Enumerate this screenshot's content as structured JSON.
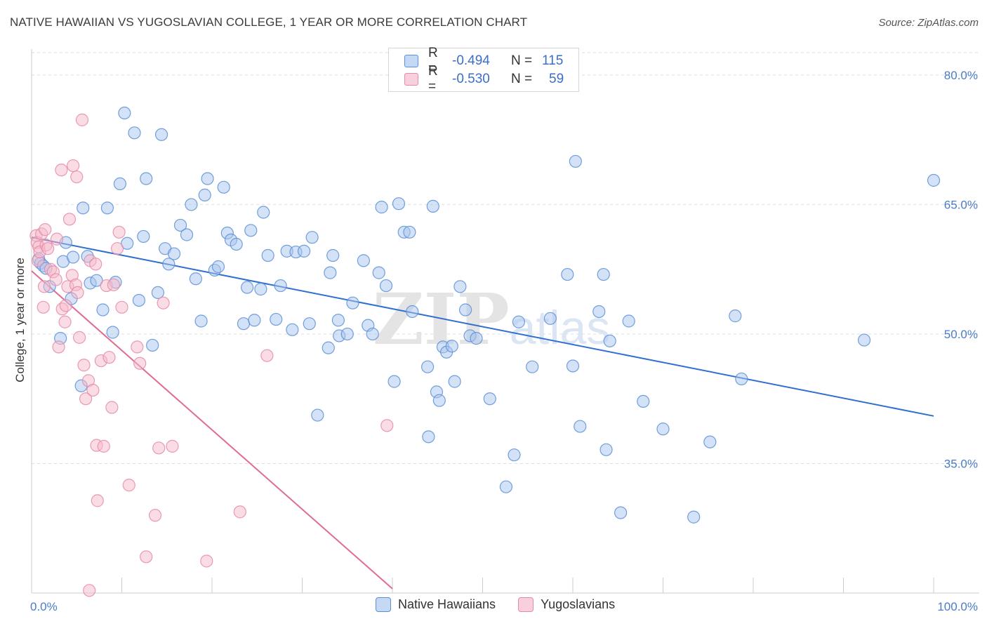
{
  "title": "NATIVE HAWAIIAN VS YUGOSLAVIAN COLLEGE, 1 YEAR OR MORE CORRELATION CHART",
  "source": "Source: ZipAtlas.com",
  "watermark": "ZIPatlas",
  "colors": {
    "blue_fill": "#a9c6ef",
    "blue_stroke": "#5b8fd6",
    "blue_line": "#2f6fcf",
    "pink_fill": "#f5b9cc",
    "pink_stroke": "#e58aa8",
    "pink_line": "#e06b96",
    "tick_text": "#4a7cc9",
    "grid": "#dedede"
  },
  "legend": {
    "rows": [
      {
        "r_label": "R =",
        "r_value": "-0.494",
        "n_label": "N =",
        "n_value": "115"
      },
      {
        "r_label": "R =",
        "r_value": "-0.530",
        "n_label": "N =",
        "n_value": "59"
      }
    ]
  },
  "bottom_legend": [
    "Native Hawaiians",
    "Yugoslavians"
  ],
  "chart_data": {
    "type": "scatter",
    "ylabel": "College, 1 year or more",
    "xlim": [
      0,
      100
    ],
    "ylim": [
      20,
      83
    ],
    "x_ticks": [
      "0.0%",
      "100.0%"
    ],
    "y_ticks": [
      {
        "value": 80,
        "label": "80.0%"
      },
      {
        "value": 65,
        "label": "65.0%"
      },
      {
        "value": 50,
        "label": "50.0%"
      },
      {
        "value": 35,
        "label": "35.0%"
      }
    ],
    "grid": true,
    "series": [
      {
        "name": "Native Hawaiians",
        "trend": {
          "x": [
            0,
            100
          ],
          "y": [
            61.2,
            40.5
          ]
        },
        "points": [
          [
            0.8,
            58.7
          ],
          [
            1,
            58.2
          ],
          [
            1.3,
            57.9
          ],
          [
            1.6,
            57.6
          ],
          [
            2,
            55.5
          ],
          [
            3.2,
            49.5
          ],
          [
            3.5,
            58.4
          ],
          [
            3.8,
            60.6
          ],
          [
            4.4,
            54.1
          ],
          [
            4.6,
            58.9
          ],
          [
            5.5,
            44
          ],
          [
            5.7,
            64.6
          ],
          [
            6.2,
            59
          ],
          [
            6.5,
            55.9
          ],
          [
            7.2,
            56.2
          ],
          [
            7.9,
            52.8
          ],
          [
            8.4,
            64.6
          ],
          [
            9,
            50.2
          ],
          [
            9.3,
            56
          ],
          [
            9.8,
            67.4
          ],
          [
            10.3,
            75.6
          ],
          [
            10.6,
            60.5
          ],
          [
            11.4,
            73.3
          ],
          [
            11.9,
            53.9
          ],
          [
            12.4,
            61.3
          ],
          [
            12.7,
            68
          ],
          [
            13.4,
            48.7
          ],
          [
            14,
            54.8
          ],
          [
            14.4,
            73.1
          ],
          [
            14.8,
            59.9
          ],
          [
            15.2,
            58.1
          ],
          [
            15.8,
            59.3
          ],
          [
            16.5,
            62.6
          ],
          [
            17.2,
            61.5
          ],
          [
            17.7,
            65
          ],
          [
            18.2,
            56.4
          ],
          [
            18.8,
            51.5
          ],
          [
            19.2,
            66.1
          ],
          [
            19.5,
            68
          ],
          [
            20.3,
            57.4
          ],
          [
            20.7,
            57.8
          ],
          [
            21.3,
            67
          ],
          [
            21.7,
            61.7
          ],
          [
            22.1,
            60.9
          ],
          [
            22.7,
            60.4
          ],
          [
            23.5,
            51.2
          ],
          [
            23.9,
            55.4
          ],
          [
            24.3,
            62
          ],
          [
            24.7,
            51.6
          ],
          [
            25.4,
            55.2
          ],
          [
            25.7,
            64.1
          ],
          [
            26.2,
            59.1
          ],
          [
            27.1,
            51.7
          ],
          [
            27.6,
            55.6
          ],
          [
            28.3,
            59.6
          ],
          [
            28.9,
            50.5
          ],
          [
            29.3,
            59.5
          ],
          [
            30.2,
            59.6
          ],
          [
            30.8,
            51.2
          ],
          [
            31.1,
            61.2
          ],
          [
            31.7,
            40.6
          ],
          [
            32.9,
            48.4
          ],
          [
            33.1,
            57.1
          ],
          [
            33.4,
            59.1
          ],
          [
            34,
            51.6
          ],
          [
            34.1,
            49.8
          ],
          [
            35,
            50
          ],
          [
            35.6,
            53.6
          ],
          [
            36.8,
            58.5
          ],
          [
            37.3,
            51
          ],
          [
            37.8,
            50
          ],
          [
            38.5,
            57.1
          ],
          [
            38.8,
            64.7
          ],
          [
            39.3,
            55.6
          ],
          [
            40.2,
            44.5
          ],
          [
            40.7,
            65.1
          ],
          [
            41.3,
            61.8
          ],
          [
            41.9,
            61.8
          ],
          [
            42.2,
            52.6
          ],
          [
            43.9,
            46.2
          ],
          [
            44,
            38.1
          ],
          [
            44.5,
            64.8
          ],
          [
            44.9,
            43.3
          ],
          [
            45.2,
            42.3
          ],
          [
            45.6,
            48.5
          ],
          [
            46,
            47.9
          ],
          [
            46.6,
            48.6
          ],
          [
            46.9,
            44.5
          ],
          [
            47.5,
            55.5
          ],
          [
            48.1,
            52.8
          ],
          [
            48.6,
            49.8
          ],
          [
            49.3,
            49.5
          ],
          [
            50.8,
            42.5
          ],
          [
            52.6,
            32.3
          ],
          [
            53.5,
            36
          ],
          [
            54,
            51.4
          ],
          [
            55.5,
            46.2
          ],
          [
            57.5,
            51.8
          ],
          [
            59.4,
            56.9
          ],
          [
            60,
            46.3
          ],
          [
            60.3,
            70
          ],
          [
            60.8,
            39.3
          ],
          [
            62.9,
            52.6
          ],
          [
            63.4,
            56.9
          ],
          [
            63.7,
            36.6
          ],
          [
            64.1,
            49.2
          ],
          [
            65.3,
            29.3
          ],
          [
            66.2,
            51.5
          ],
          [
            67.8,
            42.2
          ],
          [
            70,
            39
          ],
          [
            73.4,
            28.8
          ],
          [
            75.2,
            37.5
          ],
          [
            78,
            52.1
          ],
          [
            78.7,
            44.8
          ],
          [
            92.3,
            49.3
          ],
          [
            100,
            67.8
          ]
        ]
      },
      {
        "name": "Yugoslavians",
        "trend": {
          "x": [
            0,
            40
          ],
          "y": [
            57.3,
            20.5
          ]
        },
        "points": [
          [
            0.5,
            61.4
          ],
          [
            0.6,
            60.6
          ],
          [
            0.7,
            58.5
          ],
          [
            0.8,
            60.1
          ],
          [
            0.9,
            59.5
          ],
          [
            1.1,
            61.6
          ],
          [
            1.3,
            53.1
          ],
          [
            1.4,
            55.5
          ],
          [
            1.5,
            62.1
          ],
          [
            1.6,
            60.3
          ],
          [
            1.8,
            59.9
          ],
          [
            2.1,
            57.5
          ],
          [
            2.4,
            57.2
          ],
          [
            2.7,
            56.3
          ],
          [
            2.8,
            61
          ],
          [
            3,
            48.5
          ],
          [
            3.3,
            69
          ],
          [
            3.4,
            52.9
          ],
          [
            3.7,
            51.4
          ],
          [
            3.8,
            53.3
          ],
          [
            4,
            55.5
          ],
          [
            4.2,
            63.3
          ],
          [
            4.5,
            56.8
          ],
          [
            4.6,
            69.5
          ],
          [
            4.9,
            55.7
          ],
          [
            5,
            68.2
          ],
          [
            5.1,
            54.8
          ],
          [
            5.3,
            49.6
          ],
          [
            5.6,
            74.8
          ],
          [
            5.8,
            46.4
          ],
          [
            6,
            42.5
          ],
          [
            6.3,
            44.6
          ],
          [
            6.5,
            58.5
          ],
          [
            6.8,
            43.5
          ],
          [
            7.1,
            58.1
          ],
          [
            7.2,
            37.1
          ],
          [
            7.3,
            30.7
          ],
          [
            7.7,
            46.9
          ],
          [
            8,
            37
          ],
          [
            8.3,
            55.6
          ],
          [
            8.6,
            47.3
          ],
          [
            8.9,
            41.5
          ],
          [
            9.1,
            55.7
          ],
          [
            9.5,
            59.9
          ],
          [
            9.7,
            61.8
          ],
          [
            10,
            53.1
          ],
          [
            10.8,
            32.5
          ],
          [
            11.7,
            48.5
          ],
          [
            12,
            46.6
          ],
          [
            12.7,
            24.2
          ],
          [
            13.7,
            29
          ],
          [
            14.1,
            36.8
          ],
          [
            14.6,
            53.6
          ],
          [
            15.6,
            37
          ],
          [
            19.4,
            23.7
          ],
          [
            23.1,
            29.4
          ],
          [
            26.1,
            47.5
          ],
          [
            39.4,
            39.4
          ],
          [
            6.4,
            20.3
          ]
        ]
      }
    ]
  }
}
